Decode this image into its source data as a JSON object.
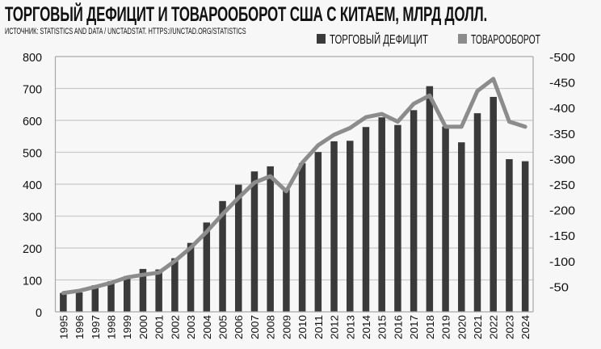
{
  "title": "ТОРГОВЫЙ ДЕФИЦИТ И ТОВАРООБОРОТ США С КИТАЕМ, МЛРД ДОЛЛ.",
  "source": "ИСТОЧНИК: STATISTICS AND DATA / UNCTADSTAT. HTTPS://UNCTAD.ORG/STATISTICS",
  "chart_data": {
    "type": "bar+line",
    "categories": [
      "1995",
      "1996",
      "1997",
      "1998",
      "1999",
      "2000",
      "2001",
      "2002",
      "2003",
      "2004",
      "2005",
      "2006",
      "2007",
      "2008",
      "2009",
      "2010",
      "2011",
      "2012",
      "2013",
      "2014",
      "2015",
      "2016",
      "2017",
      "2018",
      "2019",
      "2020",
      "2021",
      "2022",
      "2023",
      "2024"
    ],
    "series": [
      {
        "name": "ТОРГОВЫЙ ДЕФИЦИТ",
        "type": "bar",
        "axis": "right",
        "color": "#3a3a3a",
        "values": [
          -37,
          -38,
          -52,
          -60,
          -70,
          -84,
          -83,
          -105,
          -135,
          -175,
          -217,
          -249,
          -275,
          -285,
          -240,
          -291,
          -313,
          -334,
          -335,
          -362,
          -381,
          -366,
          -395,
          -442,
          -363,
          -332,
          -389,
          -421,
          -299,
          -295
        ]
      },
      {
        "name": "ТОВАРООБОРОТ",
        "type": "line",
        "axis": "left",
        "color": "#8c8c8c",
        "values": [
          59,
          66,
          78,
          91,
          108,
          116,
          123,
          159,
          201,
          251,
          306,
          357,
          405,
          425,
          378,
          467,
          522,
          555,
          576,
          610,
          620,
          596,
          652,
          678,
          580,
          580,
          692,
          730,
          596,
          580
        ]
      }
    ],
    "left_axis": {
      "range": [
        0,
        800
      ],
      "ticks": [
        "0",
        "100",
        "200",
        "300",
        "400",
        "500",
        "600",
        "700",
        "800"
      ]
    },
    "right_axis": {
      "range": [
        0,
        -500
      ],
      "ticks": [
        "-50",
        "-100",
        "-150",
        "-200",
        "-250",
        "-300",
        "-350",
        "-400",
        "-450",
        "-500"
      ]
    },
    "grid": true,
    "legend_position": "top-right"
  }
}
